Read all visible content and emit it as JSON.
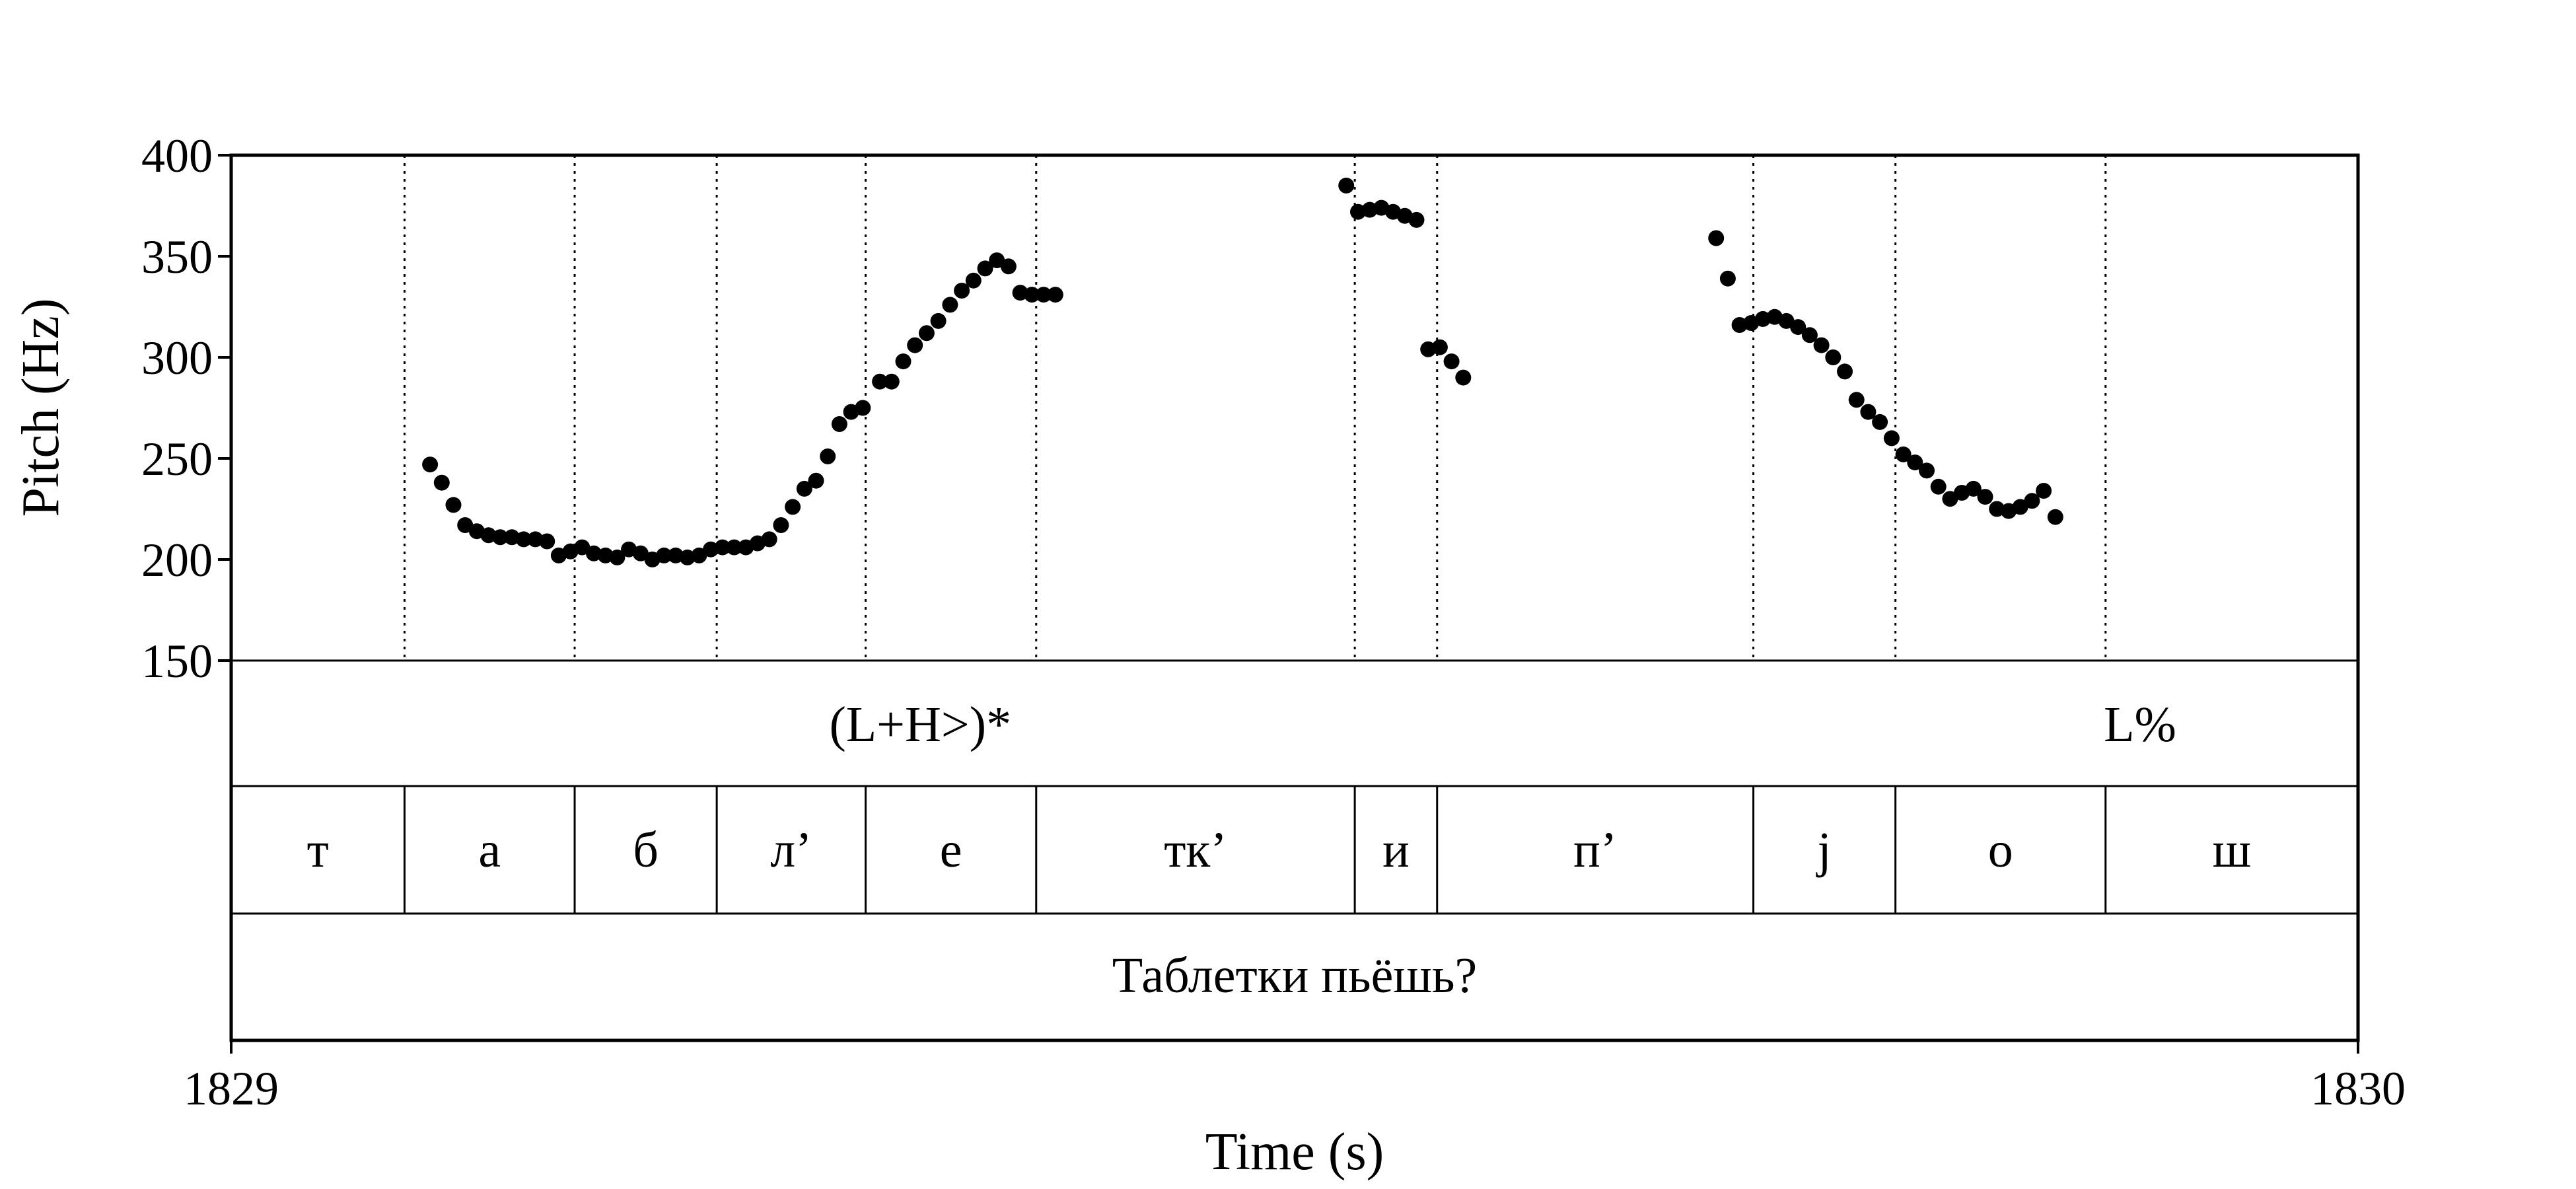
{
  "chart_data": {
    "type": "scatter",
    "title": "",
    "xlabel": "Time (s)",
    "ylabel": "Pitch (Hz)",
    "xlim": [
      1829,
      1830
    ],
    "ylim": [
      150,
      400
    ],
    "x_tick_labels": [
      "1829",
      "1830"
    ],
    "y_ticks": [
      150,
      200,
      250,
      300,
      350,
      400
    ],
    "y_tick_labels": [
      "150",
      "200",
      "250",
      "300",
      "350",
      "400"
    ],
    "grid": false,
    "segment_boundaries": [
      1829.0815,
      1829.1615,
      1829.2283,
      1829.2983,
      1829.3785,
      1829.5283,
      1829.567,
      1829.7157,
      1829.7825,
      1829.8813
    ],
    "tones": [
      {
        "label": "(L+H>)*",
        "x": 1829.324
      },
      {
        "label": "L%",
        "x": 1829.8975
      }
    ],
    "segments": [
      {
        "label": "т",
        "start": 1829.0,
        "end": 1829.0815
      },
      {
        "label": "а",
        "start": 1829.0815,
        "end": 1829.1615
      },
      {
        "label": "б",
        "start": 1829.1615,
        "end": 1829.2283
      },
      {
        "label": "л’",
        "start": 1829.2283,
        "end": 1829.2983
      },
      {
        "label": "е",
        "start": 1829.2983,
        "end": 1829.3785
      },
      {
        "label": "тк’",
        "start": 1829.3785,
        "end": 1829.5283
      },
      {
        "label": "и",
        "start": 1829.5283,
        "end": 1829.567
      },
      {
        "label": "п’",
        "start": 1829.567,
        "end": 1829.7157
      },
      {
        "label": "j",
        "start": 1829.7157,
        "end": 1829.7825
      },
      {
        "label": "о",
        "start": 1829.7825,
        "end": 1829.8813
      },
      {
        "label": "ш",
        "start": 1829.8813,
        "end": 1830.0
      }
    ],
    "words": [
      {
        "label": "Таблетки пьёшь?",
        "start": 1829.0,
        "end": 1830.0
      }
    ],
    "series": [
      {
        "points": [
          [
            1829.0935,
            247
          ],
          [
            1829.099,
            238
          ],
          [
            1829.1045,
            227
          ],
          [
            1829.11,
            217
          ],
          [
            1829.1155,
            214
          ],
          [
            1829.121,
            212
          ],
          [
            1829.1265,
            211
          ],
          [
            1829.132,
            211
          ],
          [
            1829.1375,
            210
          ],
          [
            1829.143,
            210
          ],
          [
            1829.1485,
            209
          ],
          [
            1829.154,
            202
          ],
          [
            1829.1595,
            204
          ],
          [
            1829.165,
            206
          ],
          [
            1829.1705,
            203
          ],
          [
            1829.176,
            202
          ],
          [
            1829.1815,
            201
          ],
          [
            1829.187,
            205
          ],
          [
            1829.1925,
            203
          ],
          [
            1829.198,
            200
          ],
          [
            1829.2035,
            202
          ],
          [
            1829.209,
            202
          ],
          [
            1829.2145,
            201
          ],
          [
            1829.22,
            202
          ],
          [
            1829.2255,
            205
          ],
          [
            1829.231,
            206
          ],
          [
            1829.2365,
            206
          ],
          [
            1829.242,
            206
          ],
          [
            1829.2475,
            208
          ],
          [
            1829.253,
            210
          ],
          [
            1829.2585,
            217
          ],
          [
            1829.264,
            226
          ],
          [
            1829.2695,
            235
          ],
          [
            1829.275,
            239
          ],
          [
            1829.2805,
            251
          ],
          [
            1829.286,
            267
          ],
          [
            1829.2915,
            273
          ],
          [
            1829.297,
            275
          ],
          [
            1829.305,
            288
          ],
          [
            1829.3105,
            288
          ],
          [
            1829.316,
            298
          ],
          [
            1829.3215,
            306
          ],
          [
            1829.327,
            312
          ],
          [
            1829.3325,
            318
          ],
          [
            1829.338,
            326
          ],
          [
            1829.3435,
            333
          ],
          [
            1829.349,
            338
          ],
          [
            1829.3545,
            344
          ],
          [
            1829.36,
            348
          ],
          [
            1829.3655,
            345
          ],
          [
            1829.371,
            332
          ],
          [
            1829.3765,
            331
          ],
          [
            1829.382,
            331
          ],
          [
            1829.3875,
            331
          ],
          [
            1829.5243,
            385
          ],
          [
            1829.5298,
            372
          ],
          [
            1829.5353,
            373
          ],
          [
            1829.5408,
            374
          ],
          [
            1829.5463,
            372
          ],
          [
            1829.5518,
            370
          ],
          [
            1829.5573,
            368
          ],
          [
            1829.5628,
            304
          ],
          [
            1829.5683,
            305
          ],
          [
            1829.5738,
            298
          ],
          [
            1829.5793,
            290
          ],
          [
            1829.6982,
            359
          ],
          [
            1829.7037,
            339
          ],
          [
            1829.7092,
            316
          ],
          [
            1829.7147,
            317
          ],
          [
            1829.7202,
            319
          ],
          [
            1829.7257,
            320
          ],
          [
            1829.7312,
            318
          ],
          [
            1829.7367,
            315
          ],
          [
            1829.7422,
            311
          ],
          [
            1829.7477,
            306
          ],
          [
            1829.7532,
            300
          ],
          [
            1829.7587,
            293
          ],
          [
            1829.7642,
            279
          ],
          [
            1829.7697,
            273
          ],
          [
            1829.7752,
            268
          ],
          [
            1829.7807,
            260
          ],
          [
            1829.7862,
            252
          ],
          [
            1829.7917,
            248
          ],
          [
            1829.7972,
            244
          ],
          [
            1829.8027,
            236
          ],
          [
            1829.8082,
            230
          ],
          [
            1829.8137,
            233
          ],
          [
            1829.8192,
            235
          ],
          [
            1829.8247,
            231
          ],
          [
            1829.8302,
            225
          ],
          [
            1829.8357,
            224
          ],
          [
            1829.8412,
            226
          ],
          [
            1829.8467,
            229
          ],
          [
            1829.8522,
            234
          ],
          [
            1829.8577,
            221
          ]
        ]
      }
    ]
  }
}
